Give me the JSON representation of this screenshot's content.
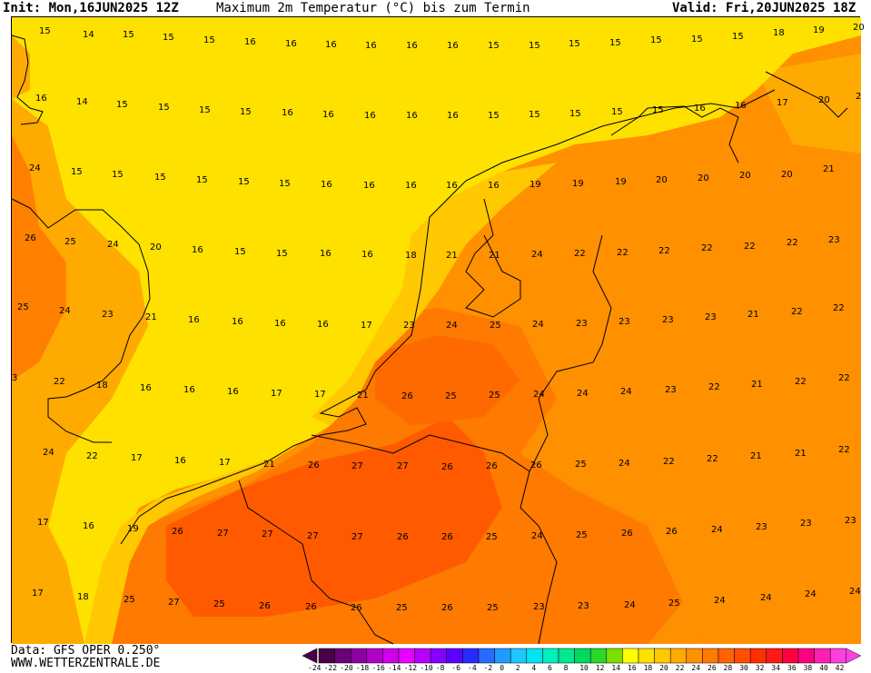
{
  "header": {
    "init": "Init: Mon,16JUN2025 12Z",
    "title": "Maximum 2m Temperatur (°C) bis zum Termin",
    "valid": "Valid: Fri,20JUN2025 18Z"
  },
  "footer": {
    "data_source": "Data: GFS OPER 0.250°",
    "website": "WWW.WETTERZENTRALE.DE"
  },
  "legend": {
    "ticks": [
      "-24",
      "-22",
      "-20",
      "-18",
      "-16",
      "-14",
      "-12",
      "-10",
      "-8",
      "-6",
      "-4",
      "-2",
      "0",
      "2",
      "4",
      "6",
      "8",
      "10",
      "12",
      "14",
      "16",
      "18",
      "20",
      "22",
      "24",
      "26",
      "28",
      "30",
      "32",
      "34",
      "36",
      "38",
      "40",
      "42"
    ],
    "colors": [
      "#4a0049",
      "#6a007a",
      "#8a00a0",
      "#b000c8",
      "#d000e8",
      "#e600ff",
      "#b400ff",
      "#8400ff",
      "#5a00ff",
      "#2a2aff",
      "#2a6aff",
      "#1e9bff",
      "#1ec8ff",
      "#00e5f0",
      "#00f0c0",
      "#00e890",
      "#00d860",
      "#2ad82a",
      "#7ae000",
      "#ffff00",
      "#ffe000",
      "#ffc800",
      "#ffaa00",
      "#ff9000",
      "#ff7a00",
      "#ff6400",
      "#ff4e00",
      "#ff3000",
      "#ff1a1a",
      "#ff0040",
      "#ff0080",
      "#ff20b0",
      "#ff40e0"
    ]
  },
  "map": {
    "colors": {
      "t15": "#ffe100",
      "t17": "#ffc800",
      "t20": "#ffaa00",
      "t23": "#ff9000",
      "t25": "#ff7a00",
      "t27": "#ff5a00",
      "sea": "#ffe100"
    },
    "values": [
      [
        30,
        8,
        "15"
      ],
      [
        78,
        12,
        "14"
      ],
      [
        122,
        12,
        "15"
      ],
      [
        166,
        15,
        "15"
      ],
      [
        211,
        18,
        "15"
      ],
      [
        256,
        20,
        "16"
      ],
      [
        301,
        22,
        "16"
      ],
      [
        345,
        23,
        "16"
      ],
      [
        389,
        24,
        "16"
      ],
      [
        434,
        24,
        "16"
      ],
      [
        479,
        24,
        "16"
      ],
      [
        524,
        24,
        "15"
      ],
      [
        569,
        24,
        "15"
      ],
      [
        613,
        22,
        "15"
      ],
      [
        658,
        21,
        "15"
      ],
      [
        703,
        18,
        "15"
      ],
      [
        748,
        17,
        "15"
      ],
      [
        793,
        14,
        "15"
      ],
      [
        838,
        10,
        "18"
      ],
      [
        882,
        7,
        "19"
      ],
      [
        926,
        4,
        "20"
      ],
      [
        26,
        82,
        "16"
      ],
      [
        71,
        86,
        "14"
      ],
      [
        115,
        89,
        "15"
      ],
      [
        161,
        92,
        "15"
      ],
      [
        206,
        95,
        "15"
      ],
      [
        251,
        97,
        "15"
      ],
      [
        297,
        98,
        "16"
      ],
      [
        342,
        100,
        "16"
      ],
      [
        388,
        101,
        "16"
      ],
      [
        434,
        101,
        "16"
      ],
      [
        479,
        101,
        "16"
      ],
      [
        524,
        101,
        "15"
      ],
      [
        569,
        100,
        "15"
      ],
      [
        614,
        99,
        "15"
      ],
      [
        660,
        97,
        "15"
      ],
      [
        705,
        95,
        "15"
      ],
      [
        751,
        93,
        "16"
      ],
      [
        796,
        90,
        "16"
      ],
      [
        842,
        87,
        "17"
      ],
      [
        888,
        84,
        "20"
      ],
      [
        929,
        80,
        "2"
      ],
      [
        19,
        159,
        "24"
      ],
      [
        65,
        163,
        "15"
      ],
      [
        110,
        166,
        "15"
      ],
      [
        157,
        169,
        "15"
      ],
      [
        203,
        172,
        "15"
      ],
      [
        249,
        174,
        "15"
      ],
      [
        294,
        176,
        "15"
      ],
      [
        340,
        177,
        "16"
      ],
      [
        387,
        178,
        "16"
      ],
      [
        433,
        178,
        "16"
      ],
      [
        478,
        178,
        "16"
      ],
      [
        524,
        178,
        "16"
      ],
      [
        570,
        177,
        "19"
      ],
      [
        617,
        176,
        "19"
      ],
      [
        664,
        174,
        "19"
      ],
      [
        709,
        172,
        "20"
      ],
      [
        755,
        170,
        "20"
      ],
      [
        801,
        167,
        "20"
      ],
      [
        847,
        166,
        "20"
      ],
      [
        893,
        160,
        "21"
      ],
      [
        14,
        236,
        "26"
      ],
      [
        58,
        240,
        "25"
      ],
      [
        105,
        243,
        "24"
      ],
      [
        152,
        246,
        "20"
      ],
      [
        198,
        249,
        "16"
      ],
      [
        245,
        251,
        "15"
      ],
      [
        291,
        253,
        "15"
      ],
      [
        339,
        253,
        "16"
      ],
      [
        385,
        254,
        "16"
      ],
      [
        433,
        255,
        "18"
      ],
      [
        478,
        255,
        "21"
      ],
      [
        525,
        255,
        "21"
      ],
      [
        572,
        254,
        "24"
      ],
      [
        619,
        253,
        "22"
      ],
      [
        666,
        252,
        "22"
      ],
      [
        712,
        250,
        "22"
      ],
      [
        759,
        247,
        "22"
      ],
      [
        806,
        245,
        "22"
      ],
      [
        853,
        241,
        "22"
      ],
      [
        899,
        238,
        "23"
      ],
      [
        6,
        312,
        "25"
      ],
      [
        52,
        316,
        "24"
      ],
      [
        99,
        320,
        "23"
      ],
      [
        147,
        323,
        "21"
      ],
      [
        194,
        326,
        "16"
      ],
      [
        242,
        328,
        "16"
      ],
      [
        289,
        330,
        "16"
      ],
      [
        336,
        331,
        "16"
      ],
      [
        384,
        332,
        "17"
      ],
      [
        431,
        332,
        "23"
      ],
      [
        478,
        332,
        "24"
      ],
      [
        526,
        332,
        "25"
      ],
      [
        573,
        331,
        "24"
      ],
      [
        621,
        330,
        "23"
      ],
      [
        668,
        328,
        "23"
      ],
      [
        716,
        326,
        "23"
      ],
      [
        763,
        323,
        "23"
      ],
      [
        810,
        320,
        "21"
      ],
      [
        858,
        317,
        "22"
      ],
      [
        904,
        313,
        "22"
      ],
      [
        0,
        390,
        "3"
      ],
      [
        46,
        394,
        "22"
      ],
      [
        93,
        398,
        "18"
      ],
      [
        141,
        401,
        "16"
      ],
      [
        189,
        403,
        "16"
      ],
      [
        237,
        405,
        "16"
      ],
      [
        285,
        407,
        "17"
      ],
      [
        333,
        408,
        "17"
      ],
      [
        380,
        409,
        "21"
      ],
      [
        429,
        410,
        "26"
      ],
      [
        477,
        410,
        "25"
      ],
      [
        525,
        409,
        "25"
      ],
      [
        574,
        408,
        "24"
      ],
      [
        622,
        407,
        "24"
      ],
      [
        670,
        405,
        "24"
      ],
      [
        719,
        403,
        "23"
      ],
      [
        767,
        400,
        "22"
      ],
      [
        814,
        397,
        "21"
      ],
      [
        862,
        394,
        "22"
      ],
      [
        910,
        390,
        "22"
      ],
      [
        34,
        472,
        "24"
      ],
      [
        82,
        476,
        "22"
      ],
      [
        131,
        478,
        "17"
      ],
      [
        179,
        481,
        "16"
      ],
      [
        228,
        483,
        "17"
      ],
      [
        277,
        485,
        "21"
      ],
      [
        326,
        486,
        "26"
      ],
      [
        374,
        487,
        "27"
      ],
      [
        424,
        487,
        "27"
      ],
      [
        473,
        488,
        "26"
      ],
      [
        522,
        487,
        "26"
      ],
      [
        571,
        486,
        "26"
      ],
      [
        620,
        485,
        "25"
      ],
      [
        668,
        484,
        "24"
      ],
      [
        717,
        482,
        "22"
      ],
      [
        765,
        479,
        "22"
      ],
      [
        813,
        476,
        "21"
      ],
      [
        862,
        473,
        "21"
      ],
      [
        910,
        469,
        "22"
      ],
      [
        28,
        549,
        "17"
      ],
      [
        78,
        553,
        "16"
      ],
      [
        127,
        556,
        "19"
      ],
      [
        176,
        559,
        "26"
      ],
      [
        226,
        561,
        "27"
      ],
      [
        275,
        562,
        "27"
      ],
      [
        325,
        564,
        "27"
      ],
      [
        374,
        565,
        "27"
      ],
      [
        424,
        565,
        "26"
      ],
      [
        473,
        565,
        "26"
      ],
      [
        522,
        565,
        "25"
      ],
      [
        572,
        564,
        "24"
      ],
      [
        621,
        563,
        "25"
      ],
      [
        671,
        561,
        "26"
      ],
      [
        720,
        559,
        "26"
      ],
      [
        770,
        557,
        "24"
      ],
      [
        819,
        554,
        "23"
      ],
      [
        868,
        550,
        "23"
      ],
      [
        917,
        547,
        "23"
      ],
      [
        22,
        627,
        "17"
      ],
      [
        72,
        631,
        "18"
      ],
      [
        123,
        634,
        "25"
      ],
      [
        172,
        637,
        "27"
      ],
      [
        222,
        639,
        "25"
      ],
      [
        272,
        641,
        "26"
      ],
      [
        323,
        642,
        "26"
      ],
      [
        373,
        643,
        "26"
      ],
      [
        423,
        643,
        "25"
      ],
      [
        473,
        643,
        "26"
      ],
      [
        523,
        643,
        "25"
      ],
      [
        574,
        642,
        "23"
      ],
      [
        623,
        641,
        "23"
      ],
      [
        674,
        640,
        "24"
      ],
      [
        723,
        638,
        "25"
      ],
      [
        773,
        635,
        "24"
      ],
      [
        824,
        632,
        "24"
      ],
      [
        873,
        628,
        "24"
      ],
      [
        922,
        625,
        "24"
      ]
    ]
  }
}
